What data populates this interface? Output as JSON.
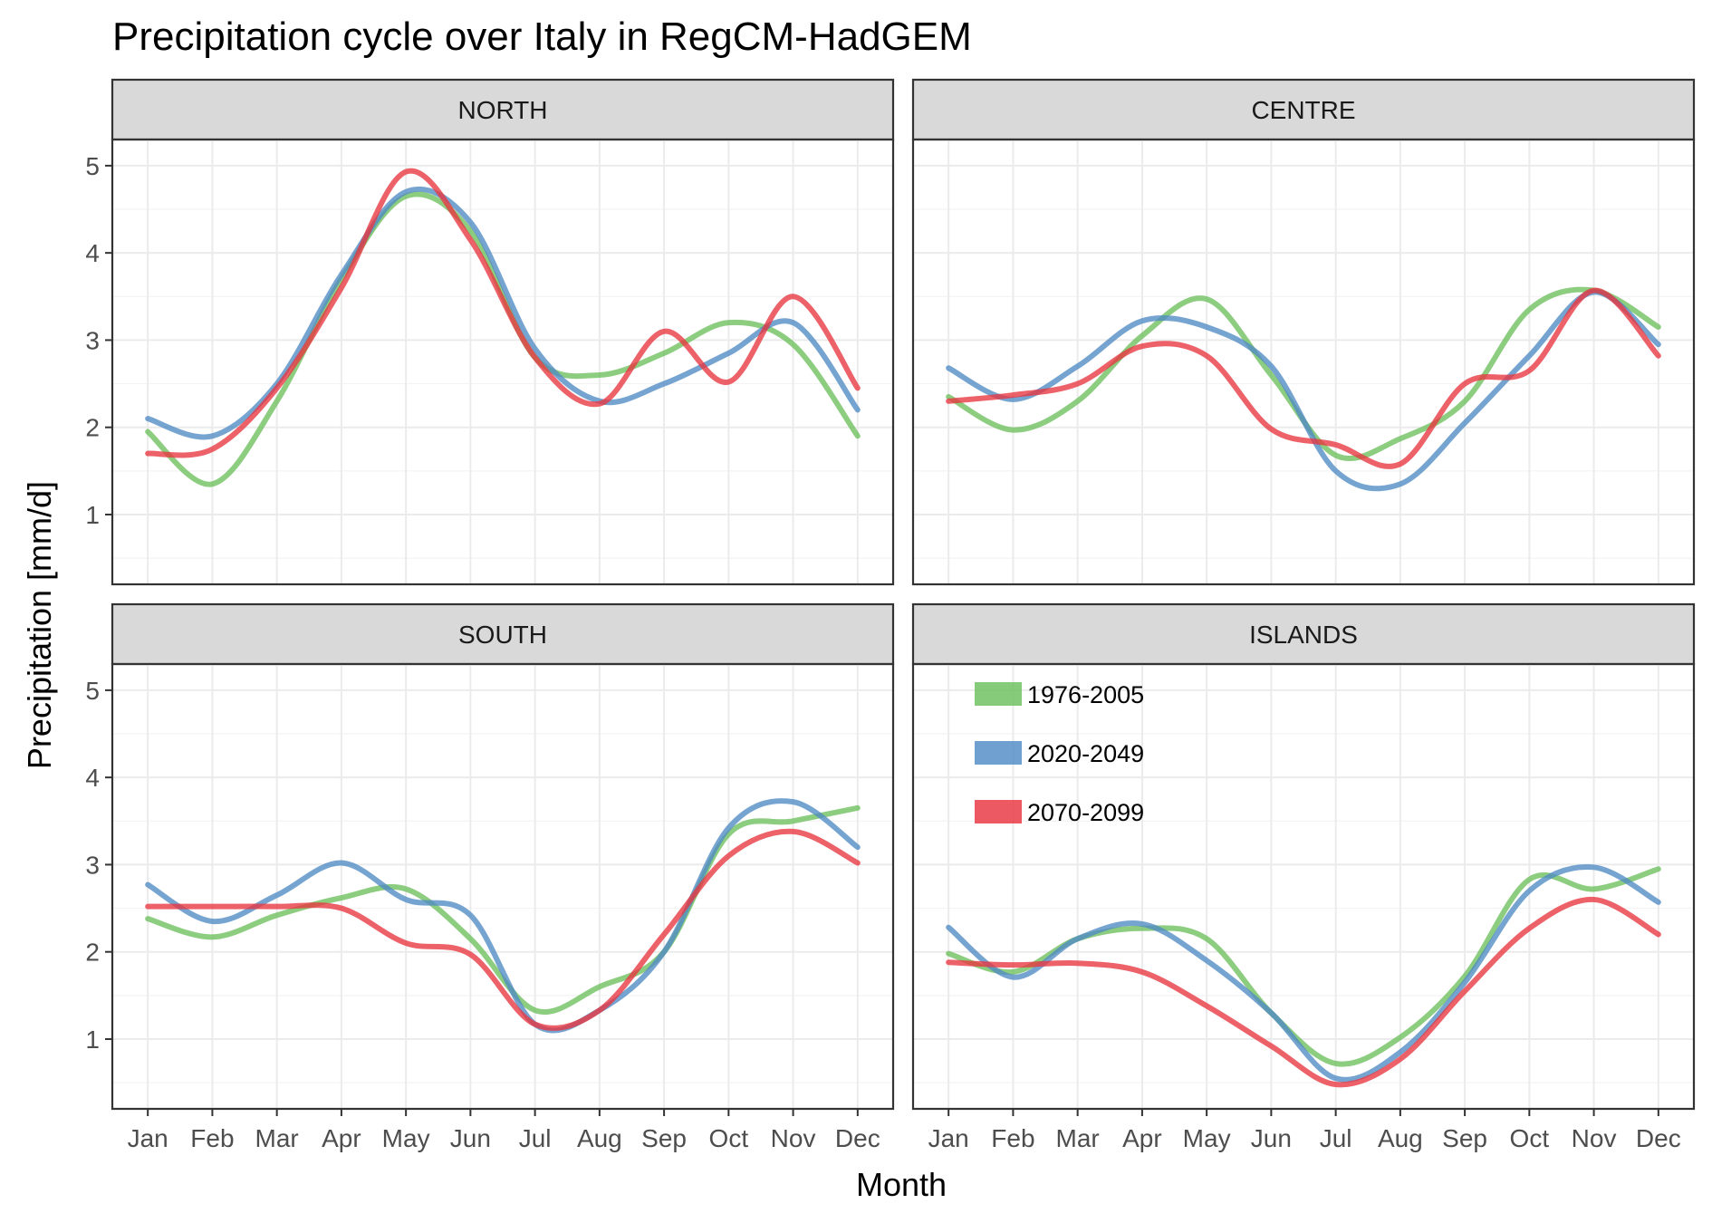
{
  "chart_data": {
    "type": "line",
    "title": "Precipitation cycle over Italy in RegCM-HadGEM",
    "xlabel": "Month",
    "ylabel": "Precipitation [mm/d]",
    "categories": [
      "Jan",
      "Feb",
      "Mar",
      "Apr",
      "May",
      "Jun",
      "Jul",
      "Aug",
      "Sep",
      "Oct",
      "Nov",
      "Dec"
    ],
    "ylim": [
      0.2,
      5.3
    ],
    "yticks": [
      1,
      2,
      3,
      4,
      5
    ],
    "grid": true,
    "legend": {
      "placement": "inside ISLANDS panel, top-left",
      "entries": [
        "1976-2005",
        "2020-2049",
        "2070-2099"
      ]
    },
    "colors": {
      "1976-2005": "#6bbf5c",
      "2020-2049": "#4f8bc4",
      "2070-2099": "#e8353f"
    },
    "panels": [
      {
        "name": "NORTH",
        "series": [
          {
            "name": "1976-2005",
            "values": [
              1.95,
              1.35,
              2.3,
              3.7,
              4.65,
              4.25,
              2.8,
              2.6,
              2.85,
              3.2,
              2.95,
              1.9
            ]
          },
          {
            "name": "2020-2049",
            "values": [
              2.1,
              1.9,
              2.5,
              3.75,
              4.7,
              4.35,
              2.9,
              2.3,
              2.5,
              2.85,
              3.2,
              2.2
            ]
          },
          {
            "name": "2070-2099",
            "values": [
              1.7,
              1.75,
              2.45,
              3.6,
              4.93,
              4.15,
              2.8,
              2.27,
              3.1,
              2.52,
              3.5,
              2.45
            ]
          }
        ]
      },
      {
        "name": "CENTRE",
        "series": [
          {
            "name": "1976-2005",
            "values": [
              2.35,
              1.97,
              2.3,
              3.05,
              3.47,
              2.6,
              1.68,
              1.87,
              2.3,
              3.35,
              3.57,
              3.15
            ]
          },
          {
            "name": "2020-2049",
            "values": [
              2.68,
              2.32,
              2.7,
              3.22,
              3.15,
              2.7,
              1.5,
              1.35,
              2.05,
              2.82,
              3.55,
              2.95
            ]
          },
          {
            "name": "2070-2099",
            "values": [
              2.3,
              2.37,
              2.5,
              2.93,
              2.82,
              1.98,
              1.8,
              1.58,
              2.5,
              2.65,
              3.57,
              2.82
            ]
          }
        ]
      },
      {
        "name": "SOUTH",
        "series": [
          {
            "name": "1976-2005",
            "values": [
              2.38,
              2.17,
              2.42,
              2.62,
              2.72,
              2.15,
              1.33,
              1.6,
              2.0,
              3.35,
              3.5,
              3.65
            ]
          },
          {
            "name": "2020-2049",
            "values": [
              2.77,
              2.35,
              2.65,
              3.02,
              2.6,
              2.42,
              1.17,
              1.33,
              2.0,
              3.42,
              3.72,
              3.2
            ]
          },
          {
            "name": "2070-2099",
            "values": [
              2.52,
              2.52,
              2.52,
              2.5,
              2.1,
              1.97,
              1.17,
              1.33,
              2.2,
              3.1,
              3.38,
              3.02
            ]
          }
        ]
      },
      {
        "name": "ISLANDS",
        "series": [
          {
            "name": "1976-2005",
            "values": [
              1.98,
              1.77,
              2.15,
              2.27,
              2.15,
              1.3,
              0.72,
              1.02,
              1.72,
              2.83,
              2.72,
              2.95
            ]
          },
          {
            "name": "2020-2049",
            "values": [
              2.28,
              1.71,
              2.15,
              2.32,
              1.9,
              1.3,
              0.55,
              0.85,
              1.65,
              2.7,
              2.97,
              2.57
            ]
          },
          {
            "name": "2070-2099",
            "values": [
              1.88,
              1.85,
              1.87,
              1.77,
              1.38,
              0.92,
              0.48,
              0.77,
              1.55,
              2.27,
              2.6,
              2.2
            ]
          }
        ]
      }
    ]
  }
}
